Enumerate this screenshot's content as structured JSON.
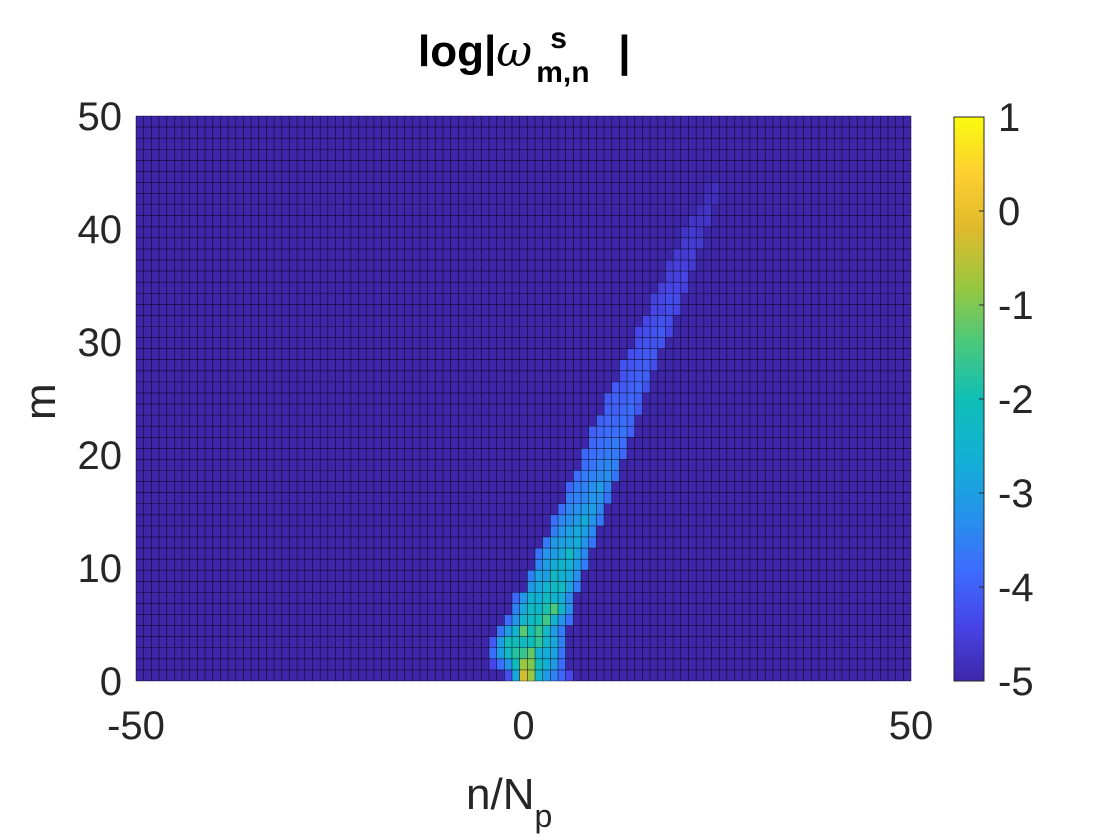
{
  "title": {
    "main": "log|",
    "symbol": "ω",
    "superscript": "s",
    "subscript": "m,n",
    "close": "|"
  },
  "xlabel": {
    "main": "n/N",
    "sub": "p"
  },
  "ylabel": "m",
  "chart_data": {
    "type": "heatmap",
    "title": "log|ω^s_m,n|",
    "xlabel": "n/N_p",
    "ylabel": "m",
    "xlim": [
      -50,
      50
    ],
    "ylim": [
      0,
      50
    ],
    "x_ticks": [
      -50,
      0,
      50
    ],
    "y_ticks": [
      0,
      10,
      20,
      30,
      40,
      50
    ],
    "colorbar": {
      "range": [
        -5,
        1
      ],
      "ticks": [
        -5,
        -4,
        -3,
        -2,
        -1,
        0,
        1
      ],
      "colormap": "parula"
    },
    "background_value": -5,
    "grid": true,
    "cells": [
      [
        0,
        0,
        -0.3
      ],
      [
        1,
        0,
        -0.8
      ],
      [
        2,
        0,
        -2.5
      ],
      [
        3,
        0,
        -3.1
      ],
      [
        4,
        0,
        -3.5
      ],
      [
        -1,
        0,
        -2.8
      ],
      [
        -2,
        0,
        -4.3
      ],
      [
        5,
        0,
        -3.9
      ],
      [
        6,
        0,
        -4.4
      ],
      [
        0,
        1,
        -0.8
      ],
      [
        1,
        1,
        -1.0
      ],
      [
        2,
        1,
        -2.1
      ],
      [
        3,
        1,
        -2.6
      ],
      [
        -1,
        1,
        -2.1
      ],
      [
        -2,
        1,
        -3.2
      ],
      [
        -3,
        1,
        -3.8
      ],
      [
        4,
        1,
        -3.1
      ],
      [
        5,
        1,
        -3.8
      ],
      [
        -4,
        1,
        -4.4
      ],
      [
        0,
        2,
        -1.6
      ],
      [
        1,
        2,
        -1.2
      ],
      [
        2,
        2,
        -2.6
      ],
      [
        -1,
        2,
        -1.8
      ],
      [
        -2,
        2,
        -2.2
      ],
      [
        -3,
        2,
        -3.0
      ],
      [
        3,
        2,
        -2.7
      ],
      [
        4,
        2,
        -2.9
      ],
      [
        5,
        2,
        -3.7
      ],
      [
        -4,
        2,
        -3.8
      ],
      [
        -2,
        3,
        -2.0
      ],
      [
        -1,
        3,
        -2.1
      ],
      [
        0,
        3,
        -2.2
      ],
      [
        1,
        3,
        -2.0
      ],
      [
        2,
        3,
        -1.7
      ],
      [
        3,
        3,
        -2.4
      ],
      [
        4,
        3,
        -2.8
      ],
      [
        -3,
        3,
        -3.0
      ],
      [
        5,
        3,
        -3.5
      ],
      [
        -4,
        3,
        -4.1
      ],
      [
        0,
        4,
        -1.3
      ],
      [
        1,
        4,
        -2.0
      ],
      [
        2,
        4,
        -1.6
      ],
      [
        3,
        4,
        -2.3
      ],
      [
        -1,
        4,
        -2.5
      ],
      [
        -2,
        4,
        -3.0
      ],
      [
        4,
        4,
        -3.0
      ],
      [
        -3,
        4,
        -3.7
      ],
      [
        5,
        4,
        -3.6
      ],
      [
        0,
        5,
        -2.4
      ],
      [
        1,
        5,
        -2.3
      ],
      [
        2,
        5,
        -2.0
      ],
      [
        3,
        5,
        -1.5
      ],
      [
        4,
        5,
        -2.5
      ],
      [
        -1,
        5,
        -3.2
      ],
      [
        -2,
        5,
        -3.8
      ],
      [
        5,
        5,
        -3.2
      ],
      [
        6,
        5,
        -3.8
      ],
      [
        1,
        6,
        -2.2
      ],
      [
        2,
        6,
        -2.4
      ],
      [
        3,
        6,
        -1.9
      ],
      [
        4,
        6,
        -1.4
      ],
      [
        5,
        6,
        -2.4
      ],
      [
        0,
        6,
        -2.8
      ],
      [
        -1,
        6,
        -3.5
      ],
      [
        6,
        6,
        -3.3
      ],
      [
        1,
        7,
        -2.5
      ],
      [
        2,
        7,
        -2.6
      ],
      [
        3,
        7,
        -2.2
      ],
      [
        4,
        7,
        -2.5
      ],
      [
        5,
        7,
        -2.7
      ],
      [
        0,
        7,
        -3.2
      ],
      [
        6,
        7,
        -3.4
      ],
      [
        -1,
        7,
        -3.9
      ],
      [
        2,
        8,
        -2.8
      ],
      [
        3,
        8,
        -2.5
      ],
      [
        4,
        8,
        -2.3
      ],
      [
        5,
        8,
        -2.2
      ],
      [
        6,
        8,
        -2.9
      ],
      [
        1,
        8,
        -3.1
      ],
      [
        7,
        8,
        -3.6
      ],
      [
        2,
        9,
        -2.9
      ],
      [
        3,
        9,
        -3.0
      ],
      [
        4,
        9,
        -2.2
      ],
      [
        5,
        9,
        -2.6
      ],
      [
        6,
        9,
        -2.8
      ],
      [
        7,
        9,
        -3.3
      ],
      [
        1,
        9,
        -3.5
      ],
      [
        3,
        10,
        -3.0
      ],
      [
        4,
        10,
        -2.7
      ],
      [
        5,
        10,
        -2.4
      ],
      [
        6,
        10,
        -2.6
      ],
      [
        7,
        10,
        -3.0
      ],
      [
        2,
        10,
        -3.4
      ],
      [
        8,
        10,
        -3.6
      ],
      [
        3,
        11,
        -3.2
      ],
      [
        4,
        11,
        -3.0
      ],
      [
        5,
        11,
        -2.8
      ],
      [
        6,
        11,
        -2.3
      ],
      [
        7,
        11,
        -2.9
      ],
      [
        8,
        11,
        -3.4
      ],
      [
        2,
        11,
        -3.7
      ],
      [
        4,
        12,
        -3.1
      ],
      [
        5,
        12,
        -3.0
      ],
      [
        6,
        12,
        -2.9
      ],
      [
        7,
        12,
        -2.7
      ],
      [
        8,
        12,
        -3.2
      ],
      [
        3,
        12,
        -3.6
      ],
      [
        9,
        12,
        -3.7
      ],
      [
        5,
        13,
        -3.2
      ],
      [
        6,
        13,
        -3.0
      ],
      [
        7,
        13,
        -2.8
      ],
      [
        8,
        13,
        -3.0
      ],
      [
        9,
        13,
        -3.4
      ],
      [
        4,
        13,
        -3.6
      ],
      [
        5,
        14,
        -3.4
      ],
      [
        6,
        14,
        -3.3
      ],
      [
        7,
        14,
        -3.1
      ],
      [
        8,
        14,
        -2.7
      ],
      [
        9,
        14,
        -3.2
      ],
      [
        10,
        14,
        -3.6
      ],
      [
        4,
        14,
        -3.8
      ],
      [
        6,
        15,
        -3.4
      ],
      [
        7,
        15,
        -3.3
      ],
      [
        8,
        15,
        -3.1
      ],
      [
        9,
        15,
        -3.0
      ],
      [
        10,
        15,
        -3.4
      ],
      [
        5,
        15,
        -3.8
      ],
      [
        6,
        16,
        -3.6
      ],
      [
        7,
        16,
        -3.5
      ],
      [
        8,
        16,
        -3.4
      ],
      [
        9,
        16,
        -3.2
      ],
      [
        10,
        16,
        -3.3
      ],
      [
        11,
        16,
        -3.7
      ],
      [
        7,
        17,
        -3.6
      ],
      [
        8,
        17,
        -3.5
      ],
      [
        9,
        17,
        -3.3
      ],
      [
        10,
        17,
        -3.1
      ],
      [
        11,
        17,
        -3.5
      ],
      [
        6,
        17,
        -3.9
      ],
      [
        7,
        18,
        -3.8
      ],
      [
        8,
        18,
        -3.6
      ],
      [
        9,
        18,
        -3.5
      ],
      [
        10,
        18,
        -3.4
      ],
      [
        11,
        18,
        -3.3
      ],
      [
        12,
        18,
        -3.7
      ],
      [
        8,
        19,
        -3.8
      ],
      [
        9,
        19,
        -3.7
      ],
      [
        10,
        19,
        -3.5
      ],
      [
        11,
        19,
        -3.4
      ],
      [
        12,
        19,
        -3.5
      ],
      [
        8,
        20,
        -3.9
      ],
      [
        9,
        20,
        -3.8
      ],
      [
        10,
        20,
        -3.7
      ],
      [
        11,
        20,
        -3.6
      ],
      [
        12,
        20,
        -3.6
      ],
      [
        13,
        20,
        -3.9
      ],
      [
        9,
        21,
        -3.9
      ],
      [
        10,
        21,
        -3.8
      ],
      [
        11,
        21,
        -3.7
      ],
      [
        12,
        21,
        -3.6
      ],
      [
        13,
        21,
        -3.8
      ],
      [
        9,
        22,
        -4.0
      ],
      [
        10,
        22,
        -3.9
      ],
      [
        11,
        22,
        -3.8
      ],
      [
        12,
        22,
        -3.8
      ],
      [
        13,
        22,
        -3.7
      ],
      [
        14,
        22,
        -4.0
      ],
      [
        10,
        23,
        -4.0
      ],
      [
        11,
        23,
        -3.9
      ],
      [
        12,
        23,
        -3.9
      ],
      [
        13,
        23,
        -3.8
      ],
      [
        14,
        23,
        -3.9
      ],
      [
        11,
        24,
        -4.0
      ],
      [
        12,
        24,
        -4.0
      ],
      [
        13,
        24,
        -3.9
      ],
      [
        14,
        24,
        -3.8
      ],
      [
        15,
        24,
        -4.1
      ],
      [
        11,
        25,
        -4.1
      ],
      [
        12,
        25,
        -4.0
      ],
      [
        13,
        25,
        -4.0
      ],
      [
        14,
        25,
        -3.9
      ],
      [
        15,
        25,
        -4.0
      ],
      [
        12,
        26,
        -4.1
      ],
      [
        13,
        26,
        -4.1
      ],
      [
        14,
        26,
        -4.0
      ],
      [
        15,
        26,
        -3.9
      ],
      [
        16,
        26,
        -4.2
      ],
      [
        13,
        27,
        -4.2
      ],
      [
        14,
        27,
        -4.1
      ],
      [
        15,
        27,
        -4.0
      ],
      [
        16,
        27,
        -4.0
      ],
      [
        13,
        28,
        -4.2
      ],
      [
        14,
        28,
        -4.2
      ],
      [
        15,
        28,
        -4.1
      ],
      [
        16,
        28,
        -4.0
      ],
      [
        17,
        28,
        -4.3
      ],
      [
        14,
        29,
        -4.3
      ],
      [
        15,
        29,
        -4.2
      ],
      [
        16,
        29,
        -4.1
      ],
      [
        17,
        29,
        -4.1
      ],
      [
        15,
        30,
        -4.3
      ],
      [
        16,
        30,
        -4.2
      ],
      [
        17,
        30,
        -4.2
      ],
      [
        18,
        30,
        -4.2
      ],
      [
        15,
        31,
        -4.4
      ],
      [
        16,
        31,
        -4.3
      ],
      [
        17,
        31,
        -4.2
      ],
      [
        18,
        31,
        -4.1
      ],
      [
        19,
        31,
        -4.4
      ],
      [
        16,
        32,
        -4.4
      ],
      [
        17,
        32,
        -4.3
      ],
      [
        18,
        32,
        -4.2
      ],
      [
        19,
        32,
        -4.3
      ],
      [
        17,
        33,
        -4.4
      ],
      [
        18,
        33,
        -4.4
      ],
      [
        19,
        33,
        -4.3
      ],
      [
        20,
        33,
        -4.4
      ],
      [
        17,
        34,
        -4.5
      ],
      [
        18,
        34,
        -4.4
      ],
      [
        19,
        34,
        -4.3
      ],
      [
        20,
        34,
        -4.3
      ],
      [
        18,
        35,
        -4.5
      ],
      [
        19,
        35,
        -4.4
      ],
      [
        20,
        35,
        -4.4
      ],
      [
        21,
        35,
        -4.5
      ],
      [
        19,
        36,
        -4.5
      ],
      [
        20,
        36,
        -4.5
      ],
      [
        21,
        36,
        -4.4
      ],
      [
        19,
        37,
        -4.6
      ],
      [
        20,
        37,
        -4.5
      ],
      [
        21,
        37,
        -4.5
      ],
      [
        22,
        37,
        -4.6
      ],
      [
        20,
        38,
        -4.6
      ],
      [
        21,
        38,
        -4.6
      ],
      [
        22,
        38,
        -4.5
      ],
      [
        21,
        39,
        -4.6
      ],
      [
        22,
        39,
        -4.6
      ],
      [
        23,
        39,
        -4.6
      ],
      [
        21,
        40,
        -4.7
      ],
      [
        22,
        40,
        -4.6
      ],
      [
        23,
        40,
        -4.7
      ],
      [
        22,
        41,
        -4.7
      ],
      [
        23,
        41,
        -4.7
      ],
      [
        24,
        41,
        -4.7
      ],
      [
        23,
        42,
        -4.8
      ],
      [
        24,
        42,
        -4.7
      ],
      [
        24,
        43,
        -4.8
      ],
      [
        25,
        43,
        -4.8
      ],
      [
        24,
        44,
        -4.9
      ],
      [
        25,
        44,
        -4.8
      ]
    ]
  }
}
